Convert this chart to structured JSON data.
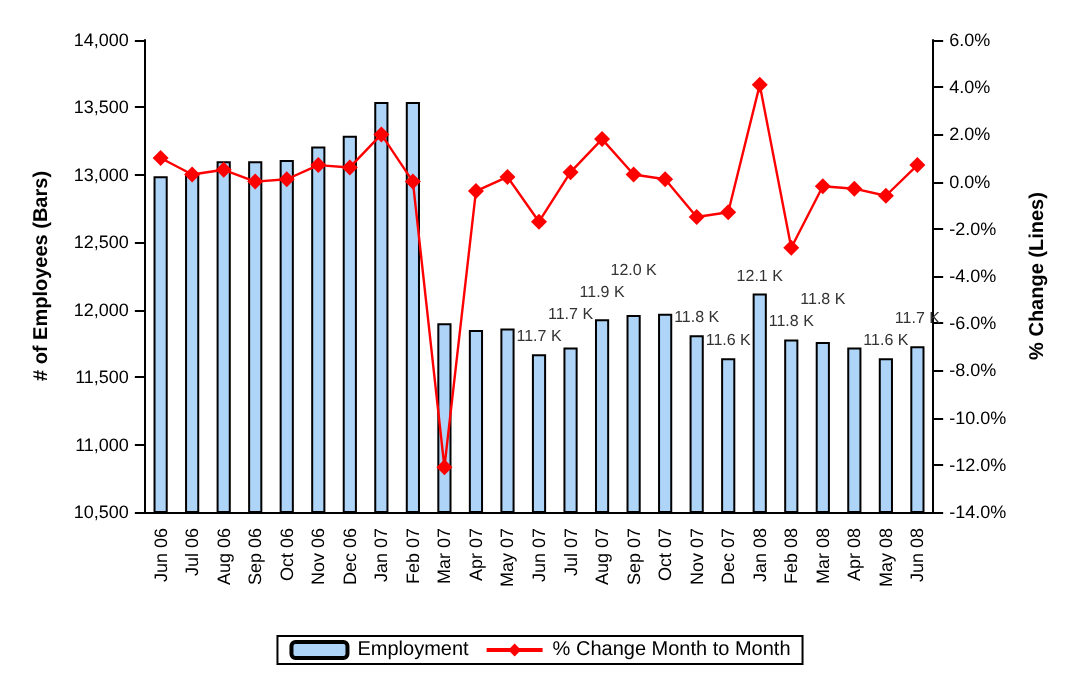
{
  "chart_data": {
    "type": "bar",
    "ylabel": "# of Employees (Bars)",
    "y2label": "% Change (Lines)",
    "categories": [
      "Jun 06",
      "Jul 06",
      "Aug 06",
      "Sep 06",
      "Oct 06",
      "Nov 06",
      "Dec 06",
      "Jan 07",
      "Feb 07",
      "Mar 07",
      "Apr 07",
      "May 07",
      "Jun 07",
      "Jul 07",
      "Aug 07",
      "Sep 07",
      "Oct 07",
      "Nov 07",
      "Dec 07",
      "Jan 08",
      "Feb 08",
      "Mar 08",
      "Apr 08",
      "May 08",
      "Jun 08"
    ],
    "series": [
      {
        "name": "Employment",
        "color": "#aed4f8",
        "values": [
          12990,
          13010,
          13100,
          13100,
          13110,
          13210,
          13290,
          13540,
          13540,
          11900,
          11850,
          11860,
          11670,
          11720,
          11930,
          11960,
          11970,
          11810,
          11640,
          12120,
          11780,
          11760,
          11720,
          11640,
          11730
        ],
        "value_labels": [
          null,
          null,
          null,
          null,
          null,
          null,
          null,
          null,
          null,
          null,
          null,
          null,
          "11.7 K",
          "11.7 K",
          "11.9 K",
          "12.0 K",
          null,
          "11.8 K",
          "11.6 K",
          "12.1 K",
          "11.8 K",
          "11.8 K",
          null,
          "11.6 K",
          "11.7 K"
        ]
      },
      {
        "name": "% Change Month to Month",
        "type": "line",
        "axis": "y2",
        "color": "#ff0000",
        "marker": "diamond",
        "values": [
          1.0,
          0.3,
          0.5,
          0.0,
          0.1,
          0.7,
          0.6,
          2.0,
          0.0,
          -12.1,
          -0.4,
          0.2,
          -1.7,
          0.4,
          1.8,
          0.3,
          0.1,
          -1.5,
          -1.3,
          4.1,
          -2.8,
          -0.2,
          -0.3,
          -0.6,
          0.7
        ]
      }
    ],
    "ylim": [
      10500,
      14000
    ],
    "yticks": [
      {
        "value": 10500,
        "label": "10,500"
      },
      {
        "value": 11000,
        "label": "11,000"
      },
      {
        "value": 11500,
        "label": "11,500"
      },
      {
        "value": 12000,
        "label": "12,000"
      },
      {
        "value": 12500,
        "label": "12,500"
      },
      {
        "value": 13000,
        "label": "13,000"
      },
      {
        "value": 13500,
        "label": "13,500"
      },
      {
        "value": 14000,
        "label": "14,000"
      }
    ],
    "y2lim": [
      -14,
      6
    ],
    "y2ticks": [
      {
        "value": -14,
        "label": "-14.0%"
      },
      {
        "value": -12,
        "label": "-12.0%"
      },
      {
        "value": -10,
        "label": "-10.0%"
      },
      {
        "value": -8,
        "label": "-8.0%"
      },
      {
        "value": -6,
        "label": "-6.0%"
      },
      {
        "value": -4,
        "label": "-4.0%"
      },
      {
        "value": -2,
        "label": "-2.0%"
      },
      {
        "value": 0,
        "label": "0.0%"
      },
      {
        "value": 2,
        "label": "2.0%"
      },
      {
        "value": 4,
        "label": "4.0%"
      },
      {
        "value": 6,
        "label": "6.0%"
      }
    ],
    "grid": false,
    "legend": "bottom"
  }
}
